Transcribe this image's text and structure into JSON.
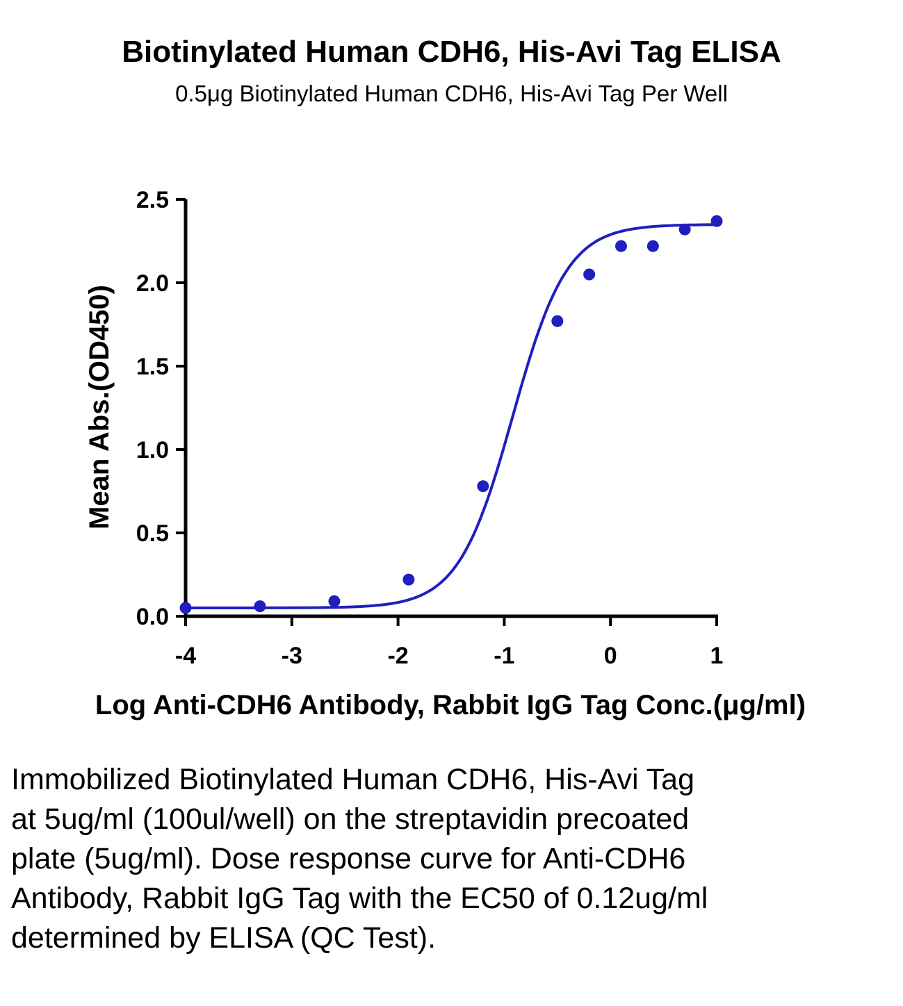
{
  "header": {
    "title": "Biotinylated Human CDH6, His-Avi Tag ELISA",
    "subtitle": "0.5μg Biotinylated Human CDH6, His-Avi Tag Per Well"
  },
  "chart_data": {
    "type": "scatter",
    "xlabel": "Log Anti-CDH6 Antibody, Rabbit IgG Tag Conc.(μg/ml)",
    "ylabel": "Mean Abs.(OD450)",
    "xlim": [
      -4,
      1
    ],
    "ylim": [
      0,
      2.5
    ],
    "x_ticks": [
      -4,
      -3,
      -2,
      -1,
      0,
      1
    ],
    "y_ticks": [
      0.0,
      0.5,
      1.0,
      1.5,
      2.0,
      2.5
    ],
    "x_tick_labels": [
      "-4",
      "-3",
      "-2",
      "-1",
      "0",
      "1"
    ],
    "y_tick_labels": [
      "0.0",
      "0.5",
      "1.0",
      "1.5",
      "2.0",
      "2.5"
    ],
    "series": [
      {
        "points_x": [
          -4.0,
          -3.3,
          -2.6,
          -1.9,
          -1.2,
          -0.5,
          -0.2,
          0.1,
          0.4,
          0.7,
          1.0
        ],
        "points_y": [
          0.05,
          0.06,
          0.09,
          0.22,
          0.78,
          1.77,
          2.05,
          2.22,
          2.22,
          2.32,
          2.37
        ],
        "color": "#1f1fbf",
        "fit": "4PL sigmoid",
        "fit_params": {
          "bottom": 0.05,
          "top": 2.35,
          "log_ec50": -0.92,
          "hill": 1.7
        }
      }
    ],
    "grid": false,
    "legend": "none"
  },
  "caption": "Immobilized Biotinylated Human CDH6, His-Avi Tag at 5ug/ml (100ul/well) on the streptavidin precoated plate (5ug/ml). Dose response curve for Anti-CDH6 Antibody, Rabbit IgG Tag with the EC50 of 0.12ug/ml determined by ELISA (QC Test)."
}
